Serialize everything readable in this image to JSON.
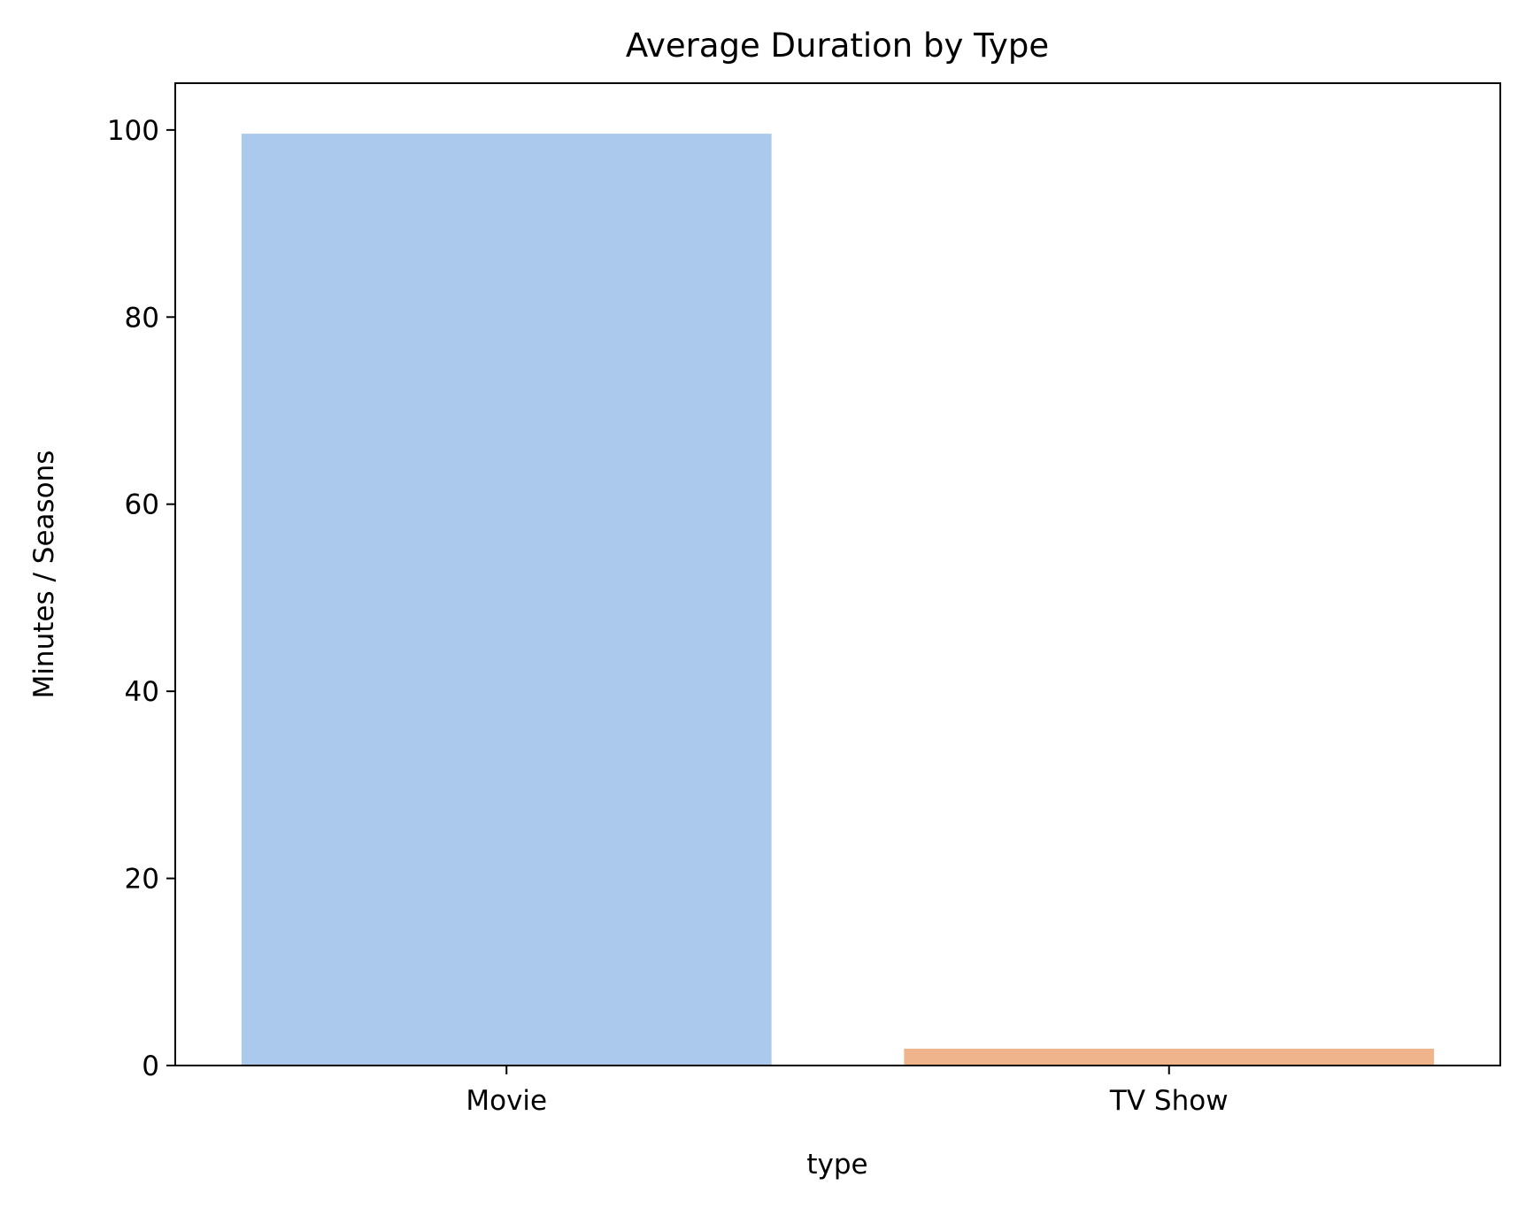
{
  "chart_data": {
    "type": "bar",
    "title": "Average Duration by Type",
    "xlabel": "type",
    "ylabel": "Minutes / Seasons",
    "categories": [
      "Movie",
      "TV Show"
    ],
    "values": [
      99.6,
      1.8
    ],
    "colors": [
      "#abc9ec",
      "#efb48c"
    ],
    "ylim": [
      0,
      105
    ],
    "yticks": [
      0,
      20,
      40,
      60,
      80,
      100
    ],
    "ytick_labels": [
      "0",
      "20",
      "40",
      "60",
      "80",
      "100"
    ],
    "grid": false,
    "legend": "none"
  }
}
